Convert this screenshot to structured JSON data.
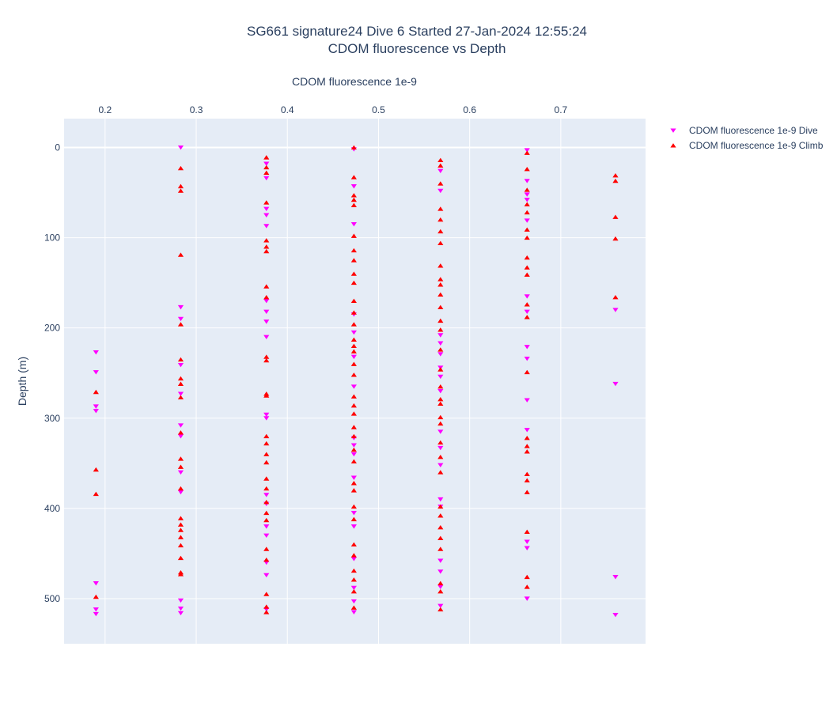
{
  "chart_data": {
    "type": "scatter",
    "title_line1": "SG661 signature24 Dive 6 Started 27-Jan-2024 12:55:24",
    "title_line2": "CDOM fluorescence vs Depth",
    "xlabel": "CDOM fluorescence 1e-9",
    "ylabel": "Depth (m)",
    "xlim": [
      0.155,
      0.793
    ],
    "ylim": [
      550,
      -32
    ],
    "x_axis_position": "top",
    "y_reversed": true,
    "grid": true,
    "plot_bgcolor": "#e5ecf6",
    "x_ticks": [
      0.2,
      0.3,
      0.4,
      0.5,
      0.6,
      0.7
    ],
    "x_tick_labels": [
      "0.2",
      "0.3",
      "0.4",
      "0.5",
      "0.6",
      "0.7"
    ],
    "y_ticks": [
      0,
      100,
      200,
      300,
      400,
      500
    ],
    "y_tick_labels": [
      "0",
      "100",
      "200",
      "300",
      "400",
      "500"
    ],
    "legend_position": "top-right",
    "series": [
      {
        "name": "CDOM fluorescence 1e-9 Dive",
        "marker": "triangle-down",
        "color": "#ff00ff",
        "points": [
          [
            0.19,
            227
          ],
          [
            0.19,
            249
          ],
          [
            0.19,
            287
          ],
          [
            0.19,
            292
          ],
          [
            0.19,
            483
          ],
          [
            0.19,
            512
          ],
          [
            0.19,
            517
          ],
          [
            0.283,
            0
          ],
          [
            0.283,
            177
          ],
          [
            0.283,
            190
          ],
          [
            0.283,
            241
          ],
          [
            0.283,
            273
          ],
          [
            0.283,
            308
          ],
          [
            0.283,
            320
          ],
          [
            0.283,
            360
          ],
          [
            0.283,
            382
          ],
          [
            0.283,
            502
          ],
          [
            0.283,
            511
          ],
          [
            0.283,
            516
          ],
          [
            0.377,
            18
          ],
          [
            0.377,
            34
          ],
          [
            0.377,
            68
          ],
          [
            0.377,
            75
          ],
          [
            0.377,
            87
          ],
          [
            0.377,
            170
          ],
          [
            0.377,
            182
          ],
          [
            0.377,
            193
          ],
          [
            0.377,
            210
          ],
          [
            0.377,
            296
          ],
          [
            0.377,
            300
          ],
          [
            0.377,
            385
          ],
          [
            0.377,
            395
          ],
          [
            0.377,
            420
          ],
          [
            0.377,
            430
          ],
          [
            0.377,
            460
          ],
          [
            0.377,
            474
          ],
          [
            0.377,
            512
          ],
          [
            0.473,
            2
          ],
          [
            0.473,
            43
          ],
          [
            0.473,
            85
          ],
          [
            0.473,
            185
          ],
          [
            0.473,
            205
          ],
          [
            0.473,
            232
          ],
          [
            0.473,
            265
          ],
          [
            0.473,
            322
          ],
          [
            0.473,
            330
          ],
          [
            0.473,
            340
          ],
          [
            0.473,
            366
          ],
          [
            0.473,
            405
          ],
          [
            0.473,
            420
          ],
          [
            0.473,
            456
          ],
          [
            0.473,
            488
          ],
          [
            0.473,
            503
          ],
          [
            0.473,
            515
          ],
          [
            0.568,
            26
          ],
          [
            0.568,
            48
          ],
          [
            0.568,
            208
          ],
          [
            0.568,
            217
          ],
          [
            0.568,
            229
          ],
          [
            0.568,
            244
          ],
          [
            0.568,
            254
          ],
          [
            0.568,
            270
          ],
          [
            0.568,
            315
          ],
          [
            0.568,
            333
          ],
          [
            0.568,
            352
          ],
          [
            0.568,
            390
          ],
          [
            0.568,
            398
          ],
          [
            0.568,
            458
          ],
          [
            0.568,
            470
          ],
          [
            0.568,
            487
          ],
          [
            0.568,
            508
          ],
          [
            0.663,
            3
          ],
          [
            0.663,
            37
          ],
          [
            0.663,
            52
          ],
          [
            0.663,
            58
          ],
          [
            0.663,
            81
          ],
          [
            0.663,
            165
          ],
          [
            0.663,
            182
          ],
          [
            0.663,
            221
          ],
          [
            0.663,
            234
          ],
          [
            0.663,
            280
          ],
          [
            0.663,
            313
          ],
          [
            0.663,
            437
          ],
          [
            0.663,
            444
          ],
          [
            0.663,
            500
          ],
          [
            0.76,
            180
          ],
          [
            0.76,
            262
          ],
          [
            0.76,
            476
          ],
          [
            0.76,
            518
          ]
        ]
      },
      {
        "name": "CDOM fluorescence 1e-9 Climb",
        "marker": "triangle-up",
        "color": "#ff0000",
        "points": [
          [
            0.19,
            271
          ],
          [
            0.19,
            357
          ],
          [
            0.19,
            384
          ],
          [
            0.19,
            498
          ],
          [
            0.283,
            23
          ],
          [
            0.283,
            43
          ],
          [
            0.283,
            48
          ],
          [
            0.283,
            119
          ],
          [
            0.283,
            196
          ],
          [
            0.283,
            235
          ],
          [
            0.283,
            256
          ],
          [
            0.283,
            262
          ],
          [
            0.283,
            277
          ],
          [
            0.283,
            316
          ],
          [
            0.283,
            345
          ],
          [
            0.283,
            354
          ],
          [
            0.283,
            378
          ],
          [
            0.283,
            411
          ],
          [
            0.283,
            418
          ],
          [
            0.283,
            424
          ],
          [
            0.283,
            432
          ],
          [
            0.283,
            441
          ],
          [
            0.283,
            455
          ],
          [
            0.283,
            471
          ],
          [
            0.283,
            473
          ],
          [
            0.377,
            11
          ],
          [
            0.377,
            22
          ],
          [
            0.377,
            28
          ],
          [
            0.377,
            61
          ],
          [
            0.377,
            103
          ],
          [
            0.377,
            110
          ],
          [
            0.377,
            115
          ],
          [
            0.377,
            154
          ],
          [
            0.377,
            166
          ],
          [
            0.377,
            232
          ],
          [
            0.377,
            236
          ],
          [
            0.377,
            273
          ],
          [
            0.377,
            275
          ],
          [
            0.377,
            320
          ],
          [
            0.377,
            328
          ],
          [
            0.377,
            340
          ],
          [
            0.377,
            349
          ],
          [
            0.377,
            367
          ],
          [
            0.377,
            378
          ],
          [
            0.377,
            393
          ],
          [
            0.377,
            405
          ],
          [
            0.377,
            413
          ],
          [
            0.377,
            445
          ],
          [
            0.377,
            457
          ],
          [
            0.377,
            495
          ],
          [
            0.377,
            509
          ],
          [
            0.377,
            515
          ],
          [
            0.473,
            0
          ],
          [
            0.473,
            33
          ],
          [
            0.473,
            53
          ],
          [
            0.473,
            58
          ],
          [
            0.473,
            64
          ],
          [
            0.473,
            98
          ],
          [
            0.473,
            114
          ],
          [
            0.473,
            125
          ],
          [
            0.473,
            140
          ],
          [
            0.473,
            150
          ],
          [
            0.473,
            170
          ],
          [
            0.473,
            183
          ],
          [
            0.473,
            196
          ],
          [
            0.473,
            213
          ],
          [
            0.473,
            220
          ],
          [
            0.473,
            226
          ],
          [
            0.473,
            240
          ],
          [
            0.473,
            252
          ],
          [
            0.473,
            276
          ],
          [
            0.473,
            286
          ],
          [
            0.473,
            295
          ],
          [
            0.473,
            310
          ],
          [
            0.473,
            320
          ],
          [
            0.473,
            335
          ],
          [
            0.473,
            348
          ],
          [
            0.473,
            372
          ],
          [
            0.473,
            380
          ],
          [
            0.473,
            398
          ],
          [
            0.473,
            412
          ],
          [
            0.473,
            440
          ],
          [
            0.473,
            452
          ],
          [
            0.473,
            469
          ],
          [
            0.473,
            479
          ],
          [
            0.473,
            492
          ],
          [
            0.473,
            510
          ],
          [
            0.568,
            14
          ],
          [
            0.568,
            20
          ],
          [
            0.568,
            40
          ],
          [
            0.568,
            68
          ],
          [
            0.568,
            80
          ],
          [
            0.568,
            93
          ],
          [
            0.568,
            106
          ],
          [
            0.568,
            131
          ],
          [
            0.568,
            146
          ],
          [
            0.568,
            152
          ],
          [
            0.568,
            163
          ],
          [
            0.568,
            177
          ],
          [
            0.568,
            192
          ],
          [
            0.568,
            202
          ],
          [
            0.568,
            224
          ],
          [
            0.568,
            246
          ],
          [
            0.568,
            265
          ],
          [
            0.568,
            279
          ],
          [
            0.568,
            284
          ],
          [
            0.568,
            299
          ],
          [
            0.568,
            306
          ],
          [
            0.568,
            327
          ],
          [
            0.568,
            343
          ],
          [
            0.568,
            360
          ],
          [
            0.568,
            398
          ],
          [
            0.568,
            408
          ],
          [
            0.568,
            421
          ],
          [
            0.568,
            433
          ],
          [
            0.568,
            445
          ],
          [
            0.568,
            483
          ],
          [
            0.568,
            492
          ],
          [
            0.568,
            512
          ],
          [
            0.663,
            6
          ],
          [
            0.663,
            24
          ],
          [
            0.663,
            47
          ],
          [
            0.663,
            63
          ],
          [
            0.663,
            72
          ],
          [
            0.663,
            91
          ],
          [
            0.663,
            100
          ],
          [
            0.663,
            122
          ],
          [
            0.663,
            133
          ],
          [
            0.663,
            141
          ],
          [
            0.663,
            174
          ],
          [
            0.663,
            188
          ],
          [
            0.663,
            249
          ],
          [
            0.663,
            322
          ],
          [
            0.663,
            331
          ],
          [
            0.663,
            337
          ],
          [
            0.663,
            362
          ],
          [
            0.663,
            369
          ],
          [
            0.663,
            382
          ],
          [
            0.663,
            426
          ],
          [
            0.663,
            476
          ],
          [
            0.663,
            487
          ],
          [
            0.76,
            31
          ],
          [
            0.76,
            37
          ],
          [
            0.76,
            77
          ],
          [
            0.76,
            101
          ],
          [
            0.76,
            166
          ]
        ]
      }
    ]
  }
}
